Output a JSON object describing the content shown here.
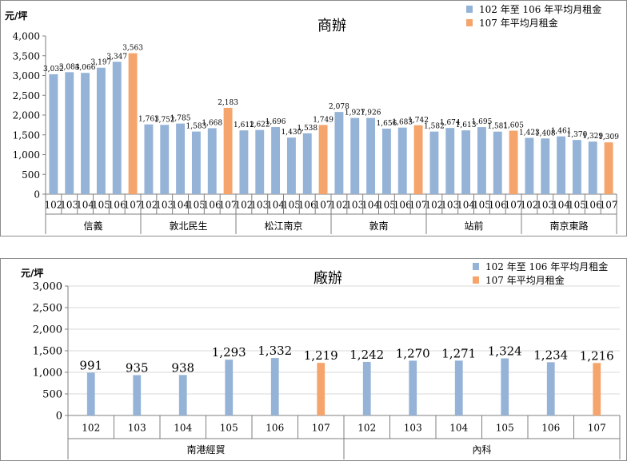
{
  "colors": {
    "past_avg": "#95B3D7",
    "current": "#F5A56B",
    "highlight_label": "#FF0000"
  },
  "chart_data": [
    {
      "type": "bar",
      "title": "商辦",
      "ylabel": "元/坪",
      "ylim": [
        0,
        4000
      ],
      "yticks": [
        "0",
        "500",
        "1,000",
        "1,500",
        "2,000",
        "2,500",
        "3,000",
        "3,500",
        "4,000"
      ],
      "ytick_values": [
        0,
        500,
        1000,
        1500,
        2000,
        2500,
        3000,
        3500,
        4000
      ],
      "legend": [
        "102 年至 106 年平均月租金",
        "107 年平均月租金"
      ],
      "legend_position": "top-right",
      "grid": false,
      "groups": [
        {
          "name": "信義",
          "years": [
            "102",
            "103",
            "104",
            "105",
            "106",
            "107"
          ],
          "values": [
            3032,
            3084,
            3066,
            3197,
            3347,
            3563
          ],
          "labels": [
            "3,032",
            "3,084",
            "3,066",
            "3,197",
            "3,347",
            "3,563"
          ]
        },
        {
          "name": "敦北民生",
          "years": [
            "102",
            "103",
            "104",
            "105",
            "106",
            "107"
          ],
          "values": [
            1763,
            1752,
            1785,
            1583,
            1668,
            2183
          ],
          "labels": [
            "1,763",
            "1,752",
            "1,785",
            "1,583",
            "1,668",
            "2,183"
          ]
        },
        {
          "name": "松江南京",
          "years": [
            "102",
            "103",
            "104",
            "105",
            "106",
            "107"
          ],
          "values": [
            1612,
            1622,
            1696,
            1430,
            1538,
            1749
          ],
          "labels": [
            "1,612",
            "1,622",
            "1,696",
            "1,430",
            "1,538",
            "1,749"
          ]
        },
        {
          "name": "敦南",
          "years": [
            "102",
            "103",
            "104",
            "105",
            "106",
            "107"
          ],
          "values": [
            2078,
            1927,
            1926,
            1656,
            1683,
            1742
          ],
          "labels": [
            "2,078",
            "1,927",
            "1,926",
            "1,656",
            "1,683",
            "1,742"
          ]
        },
        {
          "name": "站前",
          "years": [
            "102",
            "103",
            "104",
            "105",
            "106",
            "107"
          ],
          "values": [
            1582,
            1674,
            1613,
            1695,
            1581,
            1605
          ],
          "labels": [
            "1,582",
            "1,674",
            "1,613",
            "1,695",
            "1,581",
            "1,605"
          ]
        },
        {
          "name": "南京東路",
          "years": [
            "102",
            "103",
            "104",
            "105",
            "106",
            "107"
          ],
          "values": [
            1423,
            1408,
            1461,
            1370,
            1329,
            1309
          ],
          "labels": [
            "1,423",
            "1,408",
            "1,461",
            "1,370",
            "1,329",
            "1,309"
          ]
        }
      ]
    },
    {
      "type": "bar",
      "title": "廠辦",
      "ylabel": "元/坪",
      "ylim": [
        0,
        3000
      ],
      "yticks": [
        "0",
        "500",
        "1,000",
        "1,500",
        "2,000",
        "2,500",
        "3,000"
      ],
      "ytick_values": [
        0,
        500,
        1000,
        1500,
        2000,
        2500,
        3000
      ],
      "legend": [
        "102 年至 106 年平均月租金",
        "107 年平均月租金"
      ],
      "legend_position": "top-right",
      "grid": true,
      "groups": [
        {
          "name": "南港經貿",
          "years": [
            "102",
            "103",
            "104",
            "105",
            "106",
            "107"
          ],
          "values": [
            991,
            935,
            938,
            1293,
            1332,
            1219
          ],
          "labels": [
            "991",
            "935",
            "938",
            "1,293",
            "1,332",
            "1,219"
          ]
        },
        {
          "name": "內科",
          "years": [
            "102",
            "103",
            "104",
            "105",
            "106",
            "107"
          ],
          "values": [
            1242,
            1270,
            1271,
            1324,
            1234,
            1216
          ],
          "labels": [
            "1,242",
            "1,270",
            "1,271",
            "1,324",
            "1,234",
            "1,216"
          ]
        }
      ]
    }
  ]
}
